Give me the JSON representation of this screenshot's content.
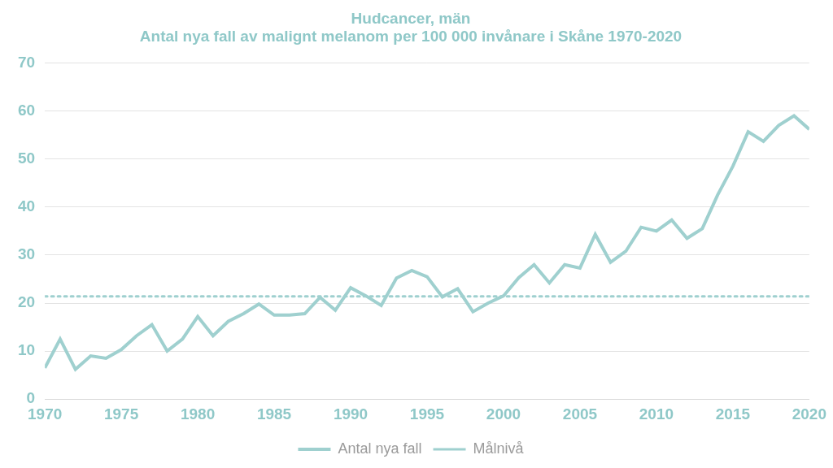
{
  "chart_data": {
    "type": "line",
    "title": [
      "Hudcancer, män",
      "Antal nya fall av malignt melanom per 100 000 invånare i Skåne 1970-2020"
    ],
    "x": [
      1970,
      1971,
      1972,
      1973,
      1974,
      1975,
      1976,
      1977,
      1978,
      1979,
      1980,
      1981,
      1982,
      1983,
      1984,
      1985,
      1986,
      1987,
      1988,
      1989,
      1990,
      1991,
      1992,
      1993,
      1994,
      1995,
      1996,
      1997,
      1998,
      1999,
      2000,
      2001,
      2002,
      2003,
      2004,
      2005,
      2006,
      2007,
      2008,
      2009,
      2010,
      2011,
      2012,
      2013,
      2014,
      2015,
      2016,
      2017,
      2018,
      2019,
      2020
    ],
    "series": [
      {
        "name": "Antal nya fall",
        "color": "#9fd0cf",
        "line_style": "solid",
        "values": [
          6.5,
          12.5,
          6.2,
          9,
          8.5,
          10.3,
          13.2,
          15.5,
          10,
          12.5,
          17.2,
          13.2,
          16.2,
          17.8,
          19.8,
          17.5,
          17.5,
          17.8,
          21.2,
          18.5,
          23.2,
          21.5,
          19.5,
          25.2,
          26.8,
          25.5,
          21.3,
          23,
          18.2,
          20,
          21.5,
          25.3,
          28,
          24.2,
          28,
          27.3,
          34.3,
          28.5,
          30.8,
          35.8,
          35,
          37.3,
          33.5,
          35.5,
          42.5,
          48.5,
          55.7,
          53.7,
          57,
          59,
          56.2
        ]
      },
      {
        "name": "Målnivå",
        "color": "#9fd0cf",
        "line_style": "dotted",
        "values": [
          21.4,
          21.4,
          21.4,
          21.4,
          21.4,
          21.4,
          21.4,
          21.4,
          21.4,
          21.4,
          21.4,
          21.4,
          21.4,
          21.4,
          21.4,
          21.4,
          21.4,
          21.4,
          21.4,
          21.4,
          21.4,
          21.4,
          21.4,
          21.4,
          21.4,
          21.4,
          21.4,
          21.4,
          21.4,
          21.4,
          21.4,
          21.4,
          21.4,
          21.4,
          21.4,
          21.4,
          21.4,
          21.4,
          21.4,
          21.4,
          21.4,
          21.4,
          21.4,
          21.4,
          21.4,
          21.4,
          21.4,
          21.4,
          21.4,
          21.4,
          21.4
        ]
      }
    ],
    "xlim": [
      1970,
      2020
    ],
    "xticks": [
      1970,
      1975,
      1980,
      1985,
      1990,
      1995,
      2000,
      2005,
      2010,
      2015,
      2020
    ],
    "ylim": [
      0,
      70
    ],
    "yticks": [
      0,
      10,
      20,
      30,
      40,
      50,
      60,
      70
    ],
    "grid": true,
    "legend": "bottom"
  }
}
